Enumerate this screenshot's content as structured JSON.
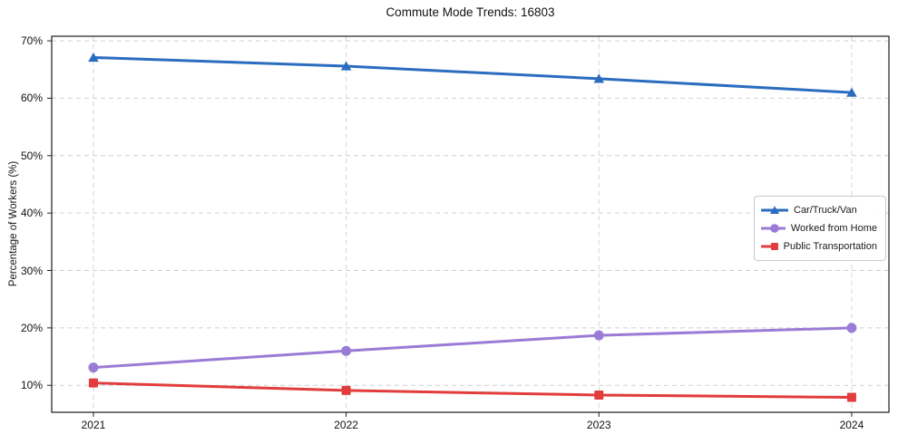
{
  "chart_data": {
    "type": "line",
    "title": "Commute Mode Trends: 16803",
    "xlabel": "",
    "ylabel": "Percentage of Workers (%)",
    "x": [
      2021,
      2022,
      2023,
      2024
    ],
    "xtick_labels": [
      "2021",
      "2022",
      "2023",
      "2024"
    ],
    "yticks": [
      10,
      20,
      30,
      40,
      50,
      60,
      70
    ],
    "ytick_labels": [
      "10%",
      "20%",
      "30%",
      "40%",
      "50%",
      "60%",
      "70%"
    ],
    "ylim": [
      5.3,
      70.8
    ],
    "grid": true,
    "grid_style": "dashed",
    "legend_position": "center-right",
    "series": [
      {
        "name": "Car/Truck/Van",
        "color": "#2a6cbf",
        "marker": "triangle",
        "values": [
          67.1,
          65.6,
          63.4,
          61.0
        ]
      },
      {
        "name": "Worked from Home",
        "color": "#9a7bd6",
        "marker": "circle",
        "values": [
          13.1,
          16.0,
          18.7,
          20.0
        ]
      },
      {
        "name": "Public Transportation",
        "color": "#e23c3c",
        "marker": "square",
        "values": [
          10.4,
          9.1,
          8.3,
          7.9
        ]
      }
    ]
  }
}
